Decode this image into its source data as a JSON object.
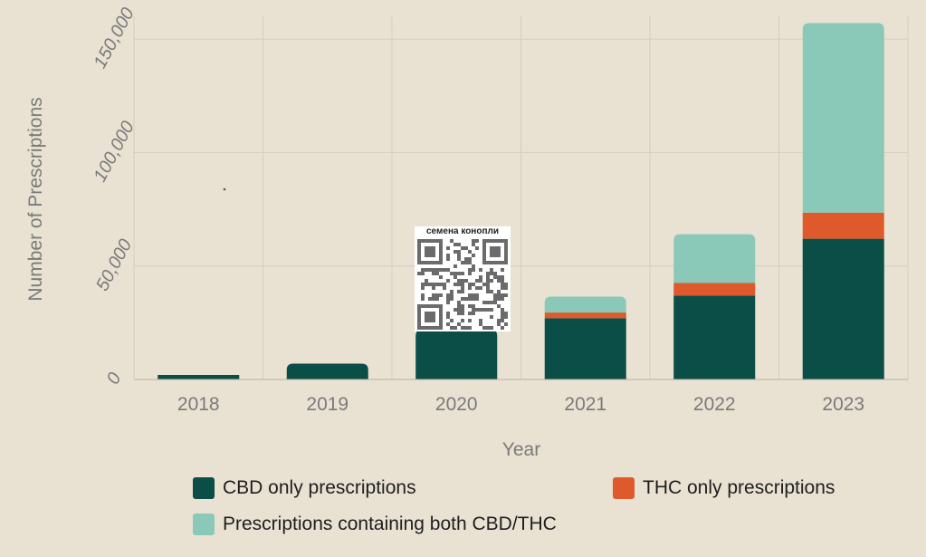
{
  "chart_data": {
    "type": "bar",
    "stacked": true,
    "categories": [
      "2018",
      "2019",
      "2020",
      "2021",
      "2022",
      "2023"
    ],
    "series": [
      {
        "name": "CBD only prescriptions",
        "color": "#0b4d47",
        "values": [
          2000,
          7000,
          22000,
          27000,
          37000,
          62000
        ]
      },
      {
        "name": "THC only prescriptions",
        "color": "#de5a2c",
        "values": [
          0,
          0,
          0,
          2500,
          5500,
          11500
        ]
      },
      {
        "name": "Prescriptions containing both CBD/THC",
        "color": "#8ac8b8",
        "values": [
          0,
          0,
          0,
          7000,
          21500,
          83500
        ]
      }
    ],
    "xlabel": "Year",
    "ylabel": "Number of Prescriptions",
    "ylim": [
      0,
      160000
    ],
    "yticks": [
      0,
      50000,
      100000,
      150000
    ],
    "ytick_labels": [
      "0",
      "50,000",
      "100,000",
      "150,000"
    ],
    "grid": true,
    "legend_placement": "bottom"
  },
  "qr_overlay": {
    "caption": "семена конопли"
  },
  "colors": {
    "background": "#e9e2d2",
    "grid": "#d4cdbf",
    "axis_text": "#7a7a7a"
  }
}
